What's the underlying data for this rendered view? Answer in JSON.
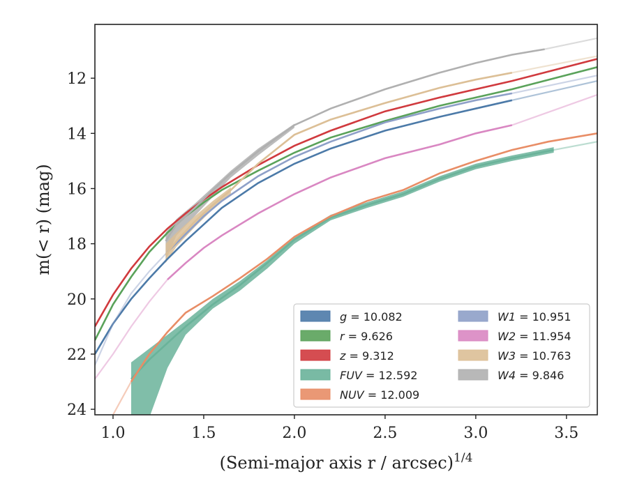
{
  "chart_data": {
    "type": "line",
    "xlabel": "(Semi-major axis r / arcsec)",
    "xlabel_sup": "1/4",
    "ylabel": "m(< r) (mag)",
    "xlim": [
      0.9,
      3.67
    ],
    "ylim": [
      24.2,
      10.05
    ],
    "y_inverted": true,
    "x_ticks": [
      1.0,
      1.5,
      2.0,
      2.5,
      3.0,
      3.5
    ],
    "x_tick_labels": [
      "1.0",
      "1.5",
      "2.0",
      "2.5",
      "3.0",
      "3.5"
    ],
    "y_ticks": [
      12,
      14,
      16,
      18,
      20,
      22,
      24
    ],
    "y_tick_labels": [
      "12",
      "14",
      "16",
      "18",
      "20",
      "22",
      "24"
    ],
    "grid": false,
    "legend_position": "lower-right",
    "series": [
      {
        "name": "g = 10.082",
        "color": "#4c7aa8",
        "x": [
          0.9,
          1.0,
          1.1,
          1.2,
          1.3,
          1.4,
          1.5,
          1.6,
          1.8,
          2.0,
          2.2,
          2.5,
          2.8,
          3.0,
          3.2,
          3.67
        ],
        "y": [
          22.0,
          20.9,
          20.0,
          19.25,
          18.55,
          17.9,
          17.3,
          16.7,
          15.8,
          15.1,
          14.55,
          13.9,
          13.4,
          13.1,
          12.8,
          12.1
        ],
        "solid_range": [
          0.9,
          3.38
        ]
      },
      {
        "name": "r = 9.626",
        "color": "#5aa25a",
        "x": [
          0.9,
          1.0,
          1.1,
          1.2,
          1.3,
          1.4,
          1.5,
          1.6,
          1.8,
          2.0,
          2.2,
          2.5,
          2.8,
          3.0,
          3.2,
          3.67
        ],
        "y": [
          21.5,
          20.2,
          19.2,
          18.3,
          17.6,
          17.0,
          16.5,
          16.05,
          15.35,
          14.7,
          14.15,
          13.55,
          13.0,
          12.7,
          12.4,
          11.6
        ],
        "solid_range": [
          0.9,
          3.67
        ]
      },
      {
        "name": "z = 9.312",
        "color": "#d03a3e",
        "x": [
          0.9,
          1.0,
          1.1,
          1.2,
          1.3,
          1.4,
          1.5,
          1.6,
          1.8,
          2.0,
          2.2,
          2.5,
          2.8,
          3.0,
          3.2,
          3.67
        ],
        "y": [
          21.0,
          19.85,
          18.9,
          18.1,
          17.45,
          16.9,
          16.4,
          15.95,
          15.15,
          14.45,
          13.9,
          13.2,
          12.7,
          12.4,
          12.1,
          11.3
        ],
        "solid_range": [
          0.9,
          3.67
        ]
      },
      {
        "name": "FUV = 12.592",
        "color": "#6ab39a",
        "x": [
          1.1,
          1.2,
          1.3,
          1.4,
          1.55,
          1.7,
          1.85,
          2.0,
          2.2,
          2.4,
          2.6,
          2.8,
          3.0,
          3.2,
          3.43,
          3.67
        ],
        "y": [
          22.9,
          22.2,
          21.6,
          21.0,
          20.2,
          19.5,
          18.7,
          17.85,
          17.05,
          16.6,
          16.2,
          15.65,
          15.2,
          14.9,
          14.6,
          14.3
        ],
        "solid_range": [
          1.1,
          3.43
        ]
      },
      {
        "name": "NUV = 12.009",
        "color": "#e88d66",
        "x": [
          0.9,
          1.0,
          1.1,
          1.2,
          1.3,
          1.4,
          1.55,
          1.7,
          1.85,
          2.0,
          2.2,
          2.4,
          2.6,
          2.8,
          3.0,
          3.2,
          3.4,
          3.67
        ],
        "y": [
          26.0,
          24.2,
          23.0,
          22.0,
          21.2,
          20.5,
          19.9,
          19.25,
          18.55,
          17.75,
          17.0,
          16.45,
          16.05,
          15.45,
          15.0,
          14.6,
          14.3,
          14.0
        ],
        "solid_range": [
          1.1,
          3.67
        ]
      },
      {
        "name": "W1 = 10.951",
        "color": "#8ea0c8",
        "x": [
          0.9,
          1.0,
          1.1,
          1.2,
          1.3,
          1.4,
          1.5,
          1.6,
          1.8,
          2.0,
          2.2,
          2.5,
          2.8,
          3.0,
          3.2,
          3.67
        ],
        "y": [
          22.4,
          20.9,
          19.8,
          19.0,
          18.3,
          17.65,
          17.0,
          16.45,
          15.55,
          14.85,
          14.3,
          13.6,
          13.1,
          12.8,
          12.55,
          11.9
        ],
        "solid_range": [
          1.29,
          3.38
        ]
      },
      {
        "name": "W2 = 11.954",
        "color": "#d987c2",
        "x": [
          0.9,
          1.0,
          1.1,
          1.2,
          1.3,
          1.4,
          1.5,
          1.6,
          1.8,
          2.0,
          2.2,
          2.5,
          2.8,
          3.0,
          3.2,
          3.67
        ],
        "y": [
          22.9,
          22.0,
          21.0,
          20.1,
          19.3,
          18.7,
          18.15,
          17.7,
          16.9,
          16.2,
          15.6,
          14.9,
          14.4,
          14.0,
          13.7,
          12.6
        ],
        "solid_range": [
          1.29,
          3.38
        ]
      },
      {
        "name": "W3 = 10.763",
        "color": "#dcbf96",
        "x": [
          1.29,
          1.35,
          1.45,
          1.55,
          1.65,
          1.8,
          2.0,
          2.2,
          2.5,
          2.8,
          3.0,
          3.2,
          3.67
        ],
        "y": [
          18.4,
          17.9,
          17.2,
          16.6,
          16.05,
          15.1,
          14.05,
          13.5,
          12.9,
          12.35,
          12.05,
          11.8,
          11.2
        ],
        "solid_range": [
          1.29,
          3.38
        ]
      },
      {
        "name": "W4 = 9.846",
        "color": "#b0b0b0",
        "x": [
          1.29,
          1.35,
          1.45,
          1.55,
          1.65,
          1.8,
          2.0,
          2.2,
          2.5,
          2.8,
          3.0,
          3.2,
          3.38,
          3.67
        ],
        "y": [
          17.9,
          17.3,
          16.7,
          16.05,
          15.45,
          14.65,
          13.7,
          13.1,
          12.4,
          11.8,
          11.45,
          11.15,
          10.95,
          10.55
        ],
        "solid_range": [
          1.29,
          3.38
        ]
      }
    ],
    "bands": [
      {
        "series": "FUV = 12.592",
        "color": "#6ab39a",
        "x": [
          1.1,
          1.2,
          1.3,
          1.4,
          1.55,
          1.7,
          1.85,
          2.0,
          2.2,
          2.4,
          2.6,
          2.8,
          3.0,
          3.2,
          3.43
        ],
        "lower": [
          22.3,
          21.8,
          21.3,
          20.8,
          20.0,
          19.35,
          18.6,
          17.75,
          16.95,
          16.5,
          16.1,
          15.55,
          15.1,
          14.8,
          14.5
        ],
        "upper": [
          24.3,
          24.3,
          22.5,
          21.3,
          20.35,
          19.7,
          18.9,
          18.0,
          17.15,
          16.7,
          16.3,
          15.75,
          15.3,
          15.0,
          14.7
        ]
      },
      {
        "series": "W4 = 9.846",
        "color": "#b0b0b0",
        "x": [
          1.29,
          1.35,
          1.45,
          1.55,
          1.65,
          1.8,
          2.0
        ],
        "lower": [
          17.6,
          17.1,
          16.55,
          15.95,
          15.35,
          14.55,
          13.65
        ],
        "upper": [
          18.6,
          17.7,
          17.0,
          16.3,
          15.6,
          14.8,
          13.8
        ]
      },
      {
        "series": "W3 = 10.763",
        "color": "#dcbf96",
        "x": [
          1.29,
          1.35,
          1.45,
          1.55,
          1.65
        ],
        "lower": [
          18.0,
          17.6,
          17.0,
          16.45,
          15.95
        ],
        "upper": [
          18.7,
          18.1,
          17.4,
          16.75,
          16.2
        ]
      }
    ]
  }
}
